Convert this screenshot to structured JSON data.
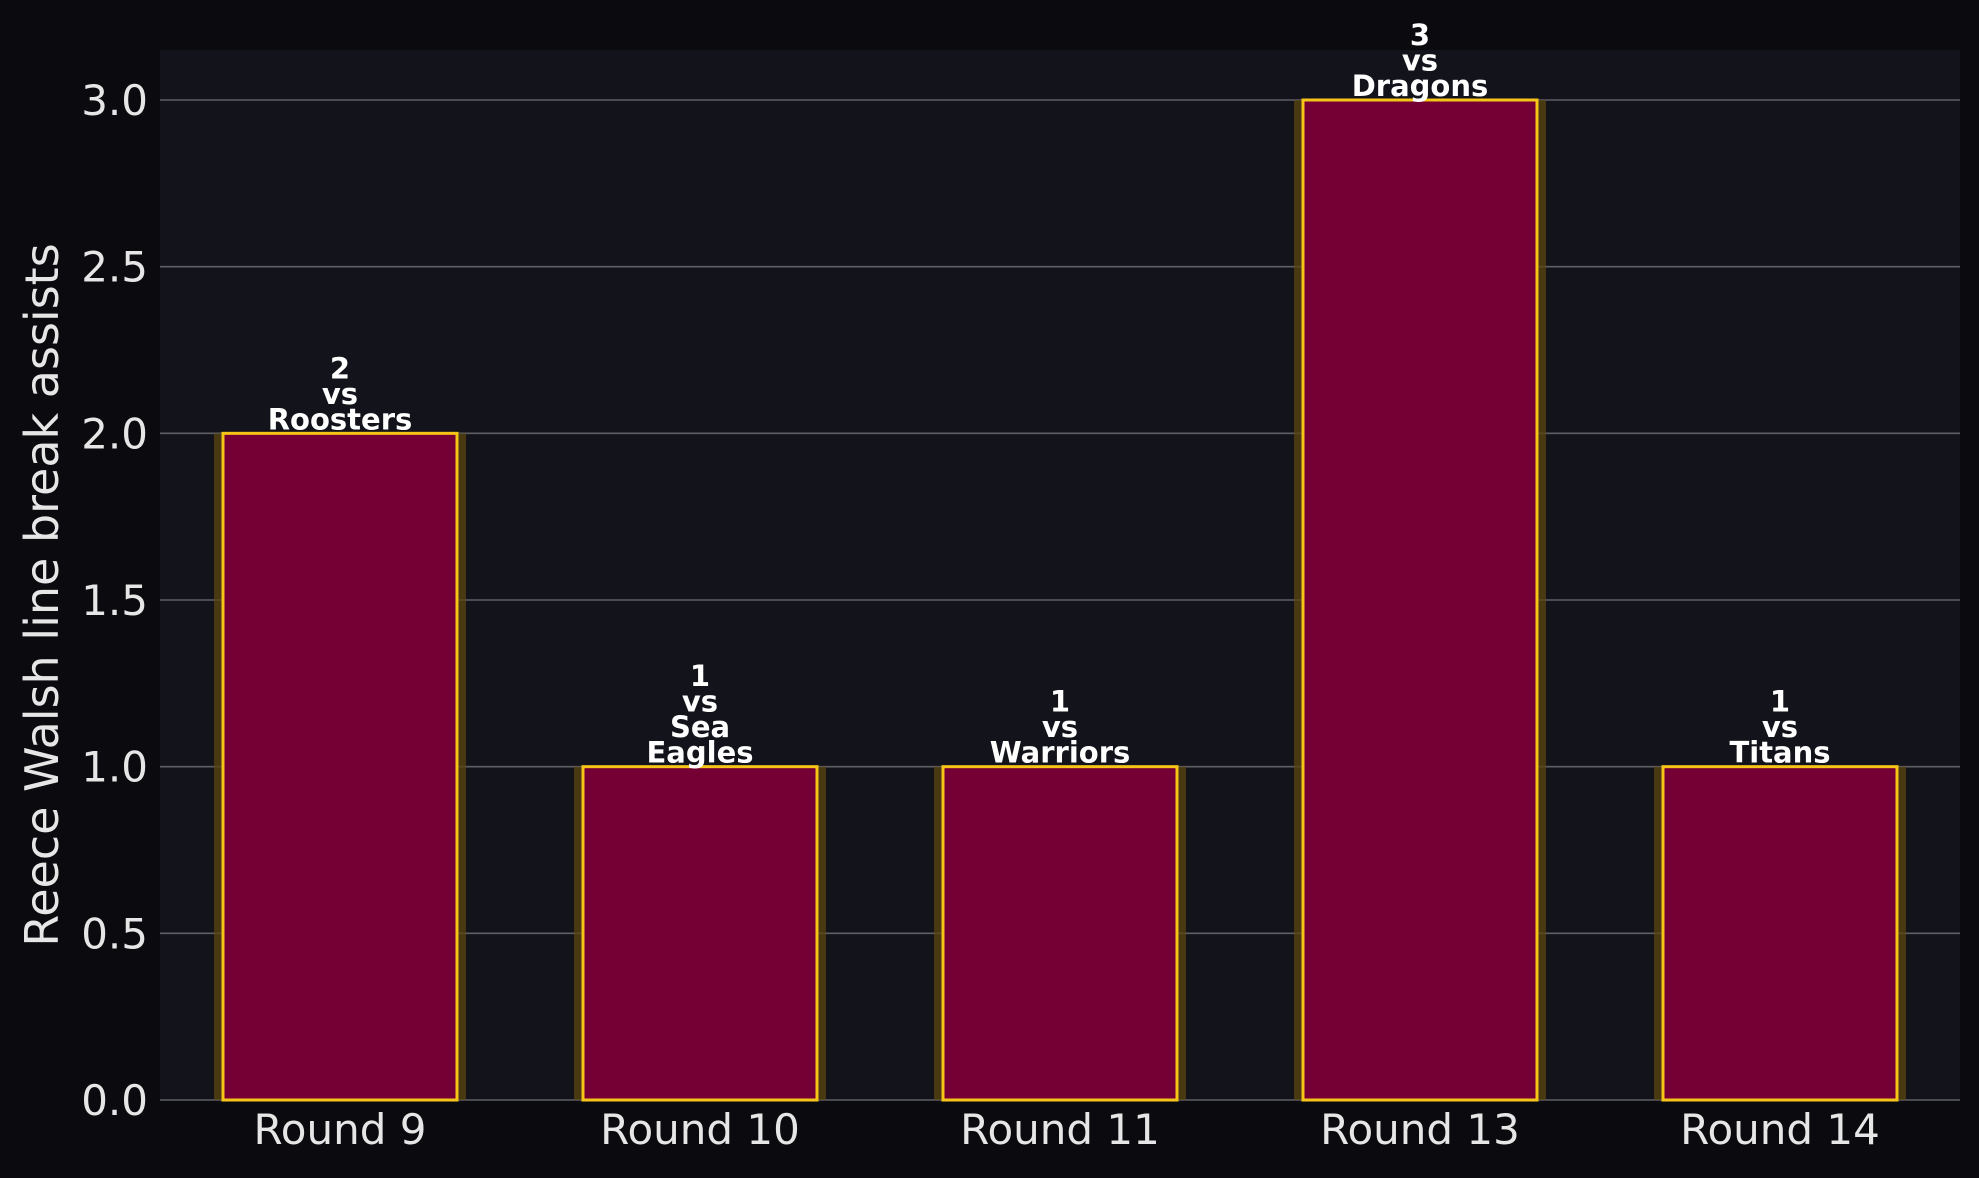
{
  "chart_data": {
    "type": "bar",
    "title": "",
    "xlabel": "",
    "ylabel": "Reece Walsh line break assists",
    "categories": [
      "Round 9",
      "Round 10",
      "Round 11",
      "Round 13",
      "Round 14"
    ],
    "values": [
      2,
      1,
      1,
      3,
      1
    ],
    "opponents": [
      "Roosters",
      "Sea Eagles",
      "Warriors",
      "Dragons",
      "Titans"
    ],
    "label_prefix": "vs",
    "ylim": [
      0,
      3.15
    ],
    "yticks": [
      0.0,
      0.5,
      1.0,
      1.5,
      2.0,
      2.5,
      3.0
    ],
    "ytick_labels": [
      "0.0",
      "0.5",
      "1.0",
      "1.5",
      "2.0",
      "2.5",
      "3.0"
    ],
    "grid": "horizontal",
    "legend": "none"
  },
  "colors": {
    "figure_background": "#0b0b0f",
    "plot_background": "#13141b",
    "bar_fill": "#740034",
    "bar_edge": "#f5c518",
    "bar_glow": "#5c4512",
    "grid": "#5e5f66",
    "text": "#e6e6e6"
  }
}
